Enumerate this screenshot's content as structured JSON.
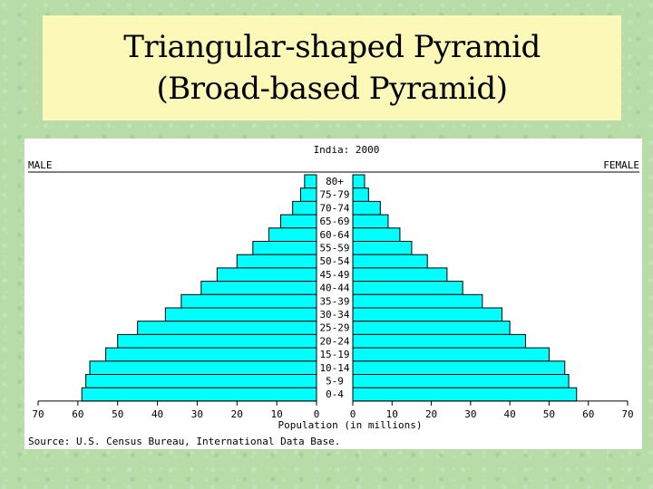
{
  "slide": {
    "title_line1": "Triangular-shaped Pyramid",
    "title_line2": "(Broad-based Pyramid)"
  },
  "chart_data": {
    "type": "bar",
    "subtype": "population-pyramid",
    "title": "India: 2000",
    "left_label": "MALE",
    "right_label": "FEMALE",
    "xlabel": "Population (in millions)",
    "source": "Source: U.S. Census Bureau, International Data Base.",
    "xlim": [
      0,
      70
    ],
    "ticks": [
      70,
      60,
      50,
      40,
      30,
      20,
      10,
      0
    ],
    "grid": false,
    "bar_color": "#00ffff",
    "categories": [
      "80+",
      "75-79",
      "70-74",
      "65-69",
      "60-64",
      "55-59",
      "50-54",
      "45-49",
      "40-44",
      "35-39",
      "30-34",
      "25-29",
      "20-24",
      "15-19",
      "10-14",
      "5-9",
      "0-4"
    ],
    "series": [
      {
        "name": "MALE",
        "values": [
          3,
          4,
          6,
          9,
          12,
          16,
          20,
          25,
          29,
          34,
          38,
          45,
          50,
          53,
          57,
          58,
          59
        ]
      },
      {
        "name": "FEMALE",
        "values": [
          3,
          4,
          7,
          9,
          12,
          15,
          19,
          24,
          28,
          33,
          38,
          40,
          44,
          50,
          54,
          55,
          57
        ]
      }
    ]
  }
}
